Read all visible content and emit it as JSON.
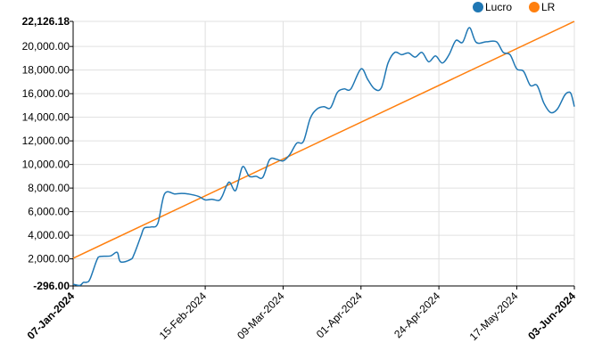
{
  "chart_data": {
    "type": "line",
    "x_range": [
      "2024-01-07",
      "2024-06-03"
    ],
    "ylim": [
      -296,
      22126.18
    ],
    "y_ticks": [
      {
        "value": -296,
        "label": "-296.00",
        "bold": true
      },
      {
        "value": 2000,
        "label": "2,000.00"
      },
      {
        "value": 4000,
        "label": "4,000.00"
      },
      {
        "value": 6000,
        "label": "6,000.00"
      },
      {
        "value": 8000,
        "label": "8,000.00"
      },
      {
        "value": 10000,
        "label": "10,000.00"
      },
      {
        "value": 12000,
        "label": "12,000.00"
      },
      {
        "value": 14000,
        "label": "14,000.00"
      },
      {
        "value": 16000,
        "label": "16,000.00"
      },
      {
        "value": 18000,
        "label": "18,000.00"
      },
      {
        "value": 20000,
        "label": "20,000.00"
      },
      {
        "value": 22126.18,
        "label": "22,126.18",
        "bold": true
      }
    ],
    "x_ticks": [
      {
        "date": "2024-01-07",
        "label": "07-Jan-2024",
        "bold": true
      },
      {
        "date": "2024-02-15",
        "label": "15-Feb-2024"
      },
      {
        "date": "2024-03-09",
        "label": "09-Mar-2024"
      },
      {
        "date": "2024-04-01",
        "label": "01-Apr-2024"
      },
      {
        "date": "2024-04-24",
        "label": "24-Apr-2024"
      },
      {
        "date": "2024-05-17",
        "label": "17-May-2024"
      },
      {
        "date": "2024-06-03",
        "label": "03-Jun-2024",
        "bold": true
      }
    ],
    "grid": true,
    "legend_position": "top-right",
    "series": [
      {
        "name": "Lucro",
        "color": "#1f77b4",
        "points": [
          [
            "2024-01-07",
            -150
          ],
          [
            "2024-01-09",
            -250
          ],
          [
            "2024-01-10",
            0
          ],
          [
            "2024-01-11",
            20
          ],
          [
            "2024-01-12",
            300
          ],
          [
            "2024-01-14",
            1900
          ],
          [
            "2024-01-15",
            2200
          ],
          [
            "2024-01-18",
            2250
          ],
          [
            "2024-01-20",
            2550
          ],
          [
            "2024-01-21",
            1750
          ],
          [
            "2024-01-24",
            1950
          ],
          [
            "2024-01-25",
            2400
          ],
          [
            "2024-01-27",
            3900
          ],
          [
            "2024-01-28",
            4600
          ],
          [
            "2024-01-30",
            4700
          ],
          [
            "2024-02-01",
            5000
          ],
          [
            "2024-02-03",
            7500
          ],
          [
            "2024-02-06",
            7500
          ],
          [
            "2024-02-08",
            7550
          ],
          [
            "2024-02-10",
            7500
          ],
          [
            "2024-02-13",
            7300
          ],
          [
            "2024-02-15",
            7000
          ],
          [
            "2024-02-17",
            7050
          ],
          [
            "2024-02-19",
            6950
          ],
          [
            "2024-02-20",
            7300
          ],
          [
            "2024-02-22",
            8500
          ],
          [
            "2024-02-24",
            7800
          ],
          [
            "2024-02-26",
            9800
          ],
          [
            "2024-02-28",
            9000
          ],
          [
            "2024-03-01",
            9000
          ],
          [
            "2024-03-03",
            8900
          ],
          [
            "2024-03-05",
            10400
          ],
          [
            "2024-03-07",
            10450
          ],
          [
            "2024-03-09",
            10300
          ],
          [
            "2024-03-11",
            10850
          ],
          [
            "2024-03-13",
            11800
          ],
          [
            "2024-03-15",
            11950
          ],
          [
            "2024-03-17",
            13900
          ],
          [
            "2024-03-19",
            14700
          ],
          [
            "2024-03-21",
            14900
          ],
          [
            "2024-03-23",
            14800
          ],
          [
            "2024-03-25",
            16100
          ],
          [
            "2024-03-27",
            16400
          ],
          [
            "2024-03-29",
            16400
          ],
          [
            "2024-04-01",
            18100
          ],
          [
            "2024-04-03",
            17200
          ],
          [
            "2024-04-05",
            16400
          ],
          [
            "2024-04-07",
            16500
          ],
          [
            "2024-04-09",
            18600
          ],
          [
            "2024-04-11",
            19500
          ],
          [
            "2024-04-13",
            19300
          ],
          [
            "2024-04-15",
            19450
          ],
          [
            "2024-04-17",
            19100
          ],
          [
            "2024-04-19",
            19500
          ],
          [
            "2024-04-21",
            18700
          ],
          [
            "2024-04-23",
            19200
          ],
          [
            "2024-04-25",
            18600
          ],
          [
            "2024-04-27",
            19300
          ],
          [
            "2024-04-29",
            20500
          ],
          [
            "2024-05-01",
            20350
          ],
          [
            "2024-05-03",
            21600
          ],
          [
            "2024-05-05",
            20350
          ],
          [
            "2024-05-08",
            20400
          ],
          [
            "2024-05-11",
            20400
          ],
          [
            "2024-05-13",
            19500
          ],
          [
            "2024-05-15",
            19300
          ],
          [
            "2024-05-17",
            18100
          ],
          [
            "2024-05-19",
            17900
          ],
          [
            "2024-05-21",
            16700
          ],
          [
            "2024-05-23",
            16700
          ],
          [
            "2024-05-25",
            15200
          ],
          [
            "2024-05-27",
            14400
          ],
          [
            "2024-05-29",
            14700
          ],
          [
            "2024-05-31",
            15800
          ],
          [
            "2024-06-01",
            16100
          ],
          [
            "2024-06-02",
            16000
          ],
          [
            "2024-06-03",
            14900
          ]
        ]
      },
      {
        "name": "LR",
        "color": "#ff7f0e",
        "points": [
          [
            "2024-01-07",
            2050
          ],
          [
            "2024-06-03",
            22126.18
          ]
        ]
      }
    ]
  }
}
